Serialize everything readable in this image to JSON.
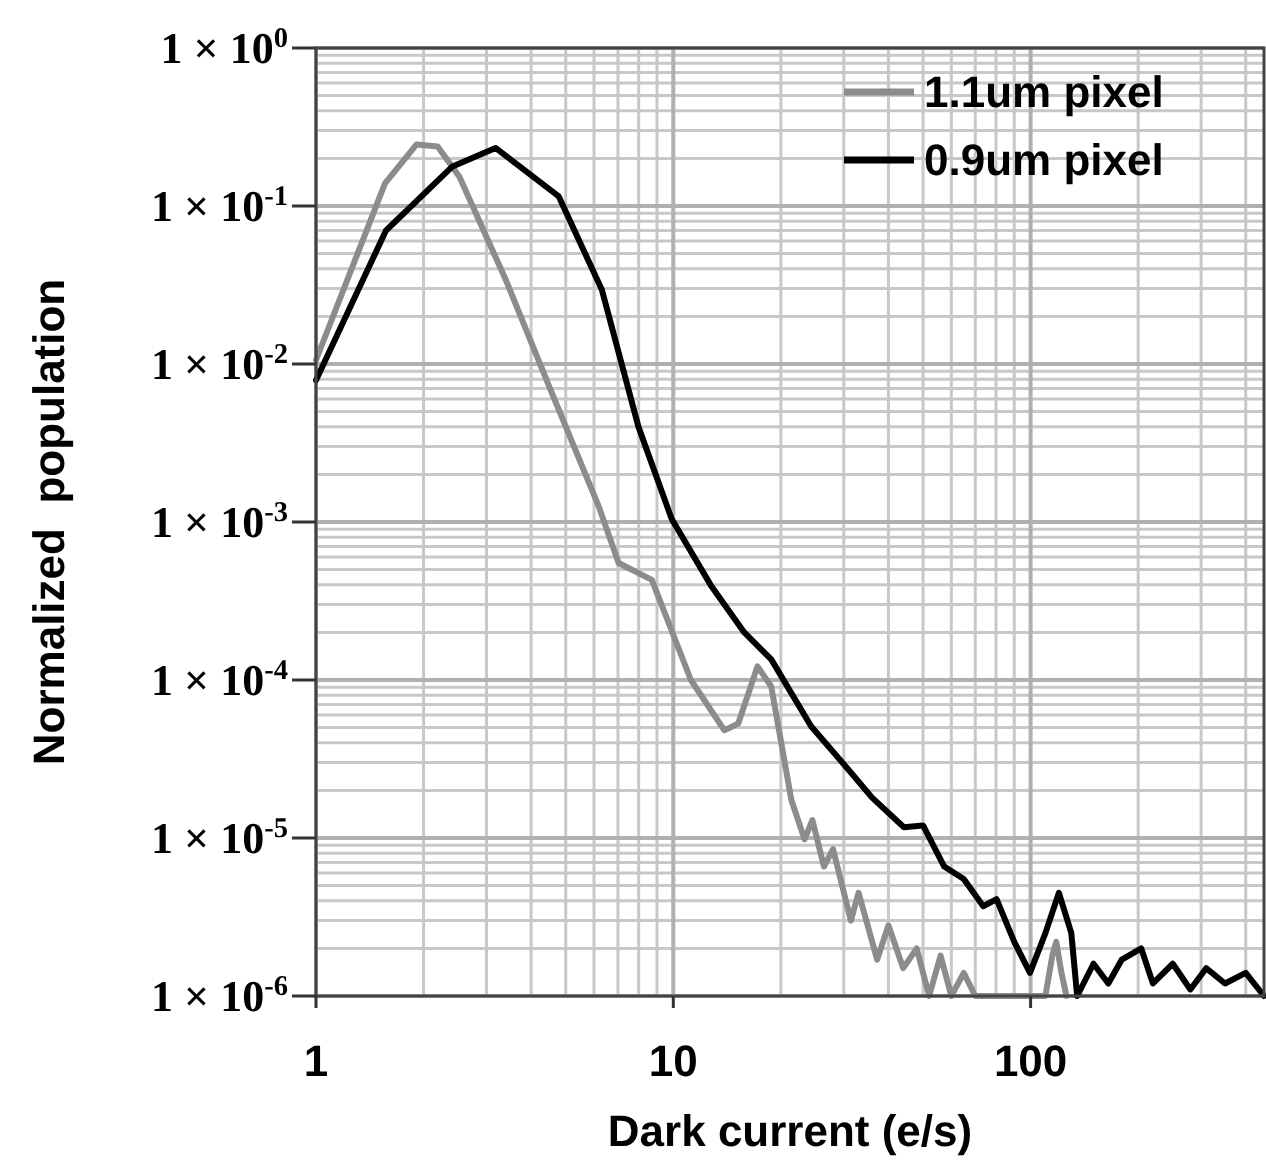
{
  "chart_data": {
    "type": "line",
    "xlabel": "Dark current (e/s)",
    "ylabel": "Normalized  population",
    "log": "xy",
    "grid": true,
    "legend": "top right",
    "line_style": "solid",
    "xlim": [
      1,
      450
    ],
    "xticks": [
      1,
      10,
      100
    ],
    "ylim": [
      1e-06,
      1
    ],
    "yticks": [
      {
        "value": 1,
        "label": "1 × 10$^{0}$"
      },
      {
        "value": 0.1,
        "label": "1 × 10$^{-1}$"
      },
      {
        "value": 0.01,
        "label": "1 × 10$^{-2}$"
      },
      {
        "value": 0.001,
        "label": "1 × 10$^{-3}$"
      },
      {
        "value": 0.0001,
        "label": "1 × 10$^{-4}$"
      },
      {
        "value": 1e-05,
        "label": "1 × 10$^{-5}$"
      },
      {
        "value": 1e-06,
        "label": "1 × 10$^{-6}$"
      }
    ],
    "series": [
      {
        "name": "1.1um pixel",
        "color": "#8c8c8c",
        "x": [
          1,
          1.56,
          1.91,
          2.19,
          2.52,
          3.4,
          4.58,
          6.18,
          7.03,
          8.71,
          11.2,
          13.9,
          15.2,
          17.2,
          18.8,
          21.4,
          23.3,
          24.5,
          26.4,
          28,
          31.4,
          33,
          37.2,
          40,
          44,
          48,
          52,
          56,
          60,
          65,
          70,
          110,
          115,
          118,
          122,
          126
        ],
        "values": [
          0.0106,
          0.139,
          0.245,
          0.238,
          0.153,
          0.034,
          0.0065,
          0.00126,
          0.00055,
          0.00043,
          0.0001,
          4.8e-05,
          5.3e-05,
          0.000122,
          9.1e-05,
          1.74e-05,
          9.8e-06,
          1.3e-05,
          6.6e-06,
          8.5e-06,
          3e-06,
          4.5e-06,
          1.7e-06,
          2.8e-06,
          1.5e-06,
          2e-06,
          1e-06,
          1.8e-06,
          1e-06,
          1.4e-06,
          1e-06,
          1e-06,
          1.8e-06,
          2.2e-06,
          1.4e-06,
          1e-06
        ]
      },
      {
        "name": "0.9um pixel",
        "color": "#000000",
        "x": [
          1,
          1.57,
          2.41,
          3.18,
          4.78,
          6.31,
          7.99,
          9.89,
          12.8,
          15.8,
          18.8,
          24.3,
          31.4,
          36,
          44.2,
          50,
          57.3,
          65,
          73.7,
          80.3,
          90,
          99.6,
          110,
          120,
          130,
          135,
          150,
          165,
          180,
          204,
          220,
          250,
          280,
          310,
          350,
          400,
          450
        ],
        "values": [
          0.0079,
          0.07,
          0.178,
          0.233,
          0.115,
          0.0295,
          0.004,
          0.00105,
          0.00039,
          0.0002,
          0.000135,
          5.1e-05,
          2.6e-05,
          1.8e-05,
          1.17e-05,
          1.2e-05,
          6.6e-06,
          5.5e-06,
          3.7e-06,
          4.1e-06,
          2.2e-06,
          1.4e-06,
          2.5e-06,
          4.5e-06,
          2.5e-06,
          1e-06,
          1.6e-06,
          1.2e-06,
          1.7e-06,
          2e-06,
          1.2e-06,
          1.6e-06,
          1.1e-06,
          1.5e-06,
          1.2e-06,
          1.4e-06,
          1e-06
        ]
      }
    ]
  }
}
